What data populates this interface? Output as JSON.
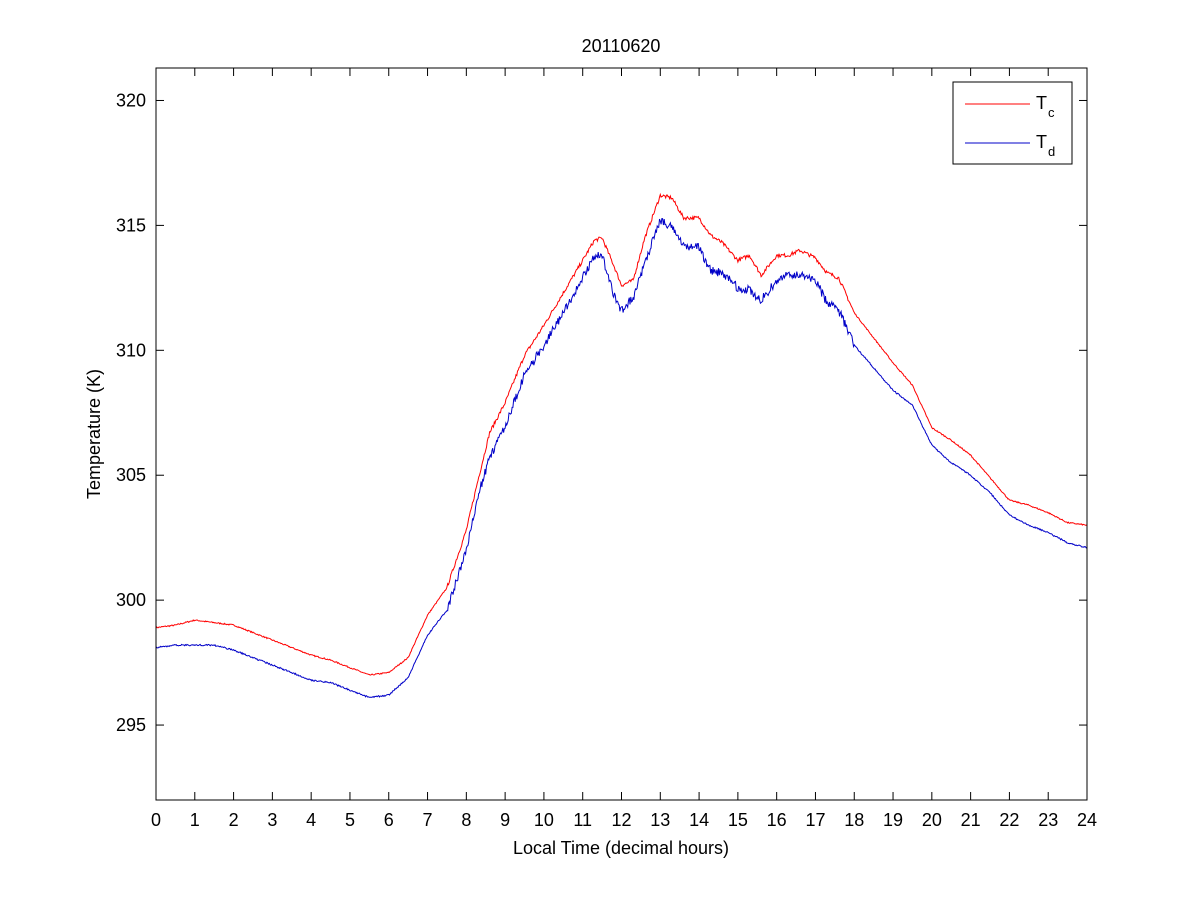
{
  "chart_data": {
    "type": "line",
    "title": "20110620",
    "xlabel": "Local Time (decimal hours)",
    "ylabel": "Temperature (K)",
    "xlim": [
      0,
      24
    ],
    "ylim": [
      292,
      321.3
    ],
    "xticks": [
      0,
      1,
      2,
      3,
      4,
      5,
      6,
      7,
      8,
      9,
      10,
      11,
      12,
      13,
      14,
      15,
      16,
      17,
      18,
      19,
      20,
      21,
      22,
      23,
      24
    ],
    "yticks": [
      295,
      300,
      305,
      310,
      315,
      320
    ],
    "grid": false,
    "legend_position": "top-right",
    "series": [
      {
        "name": "T",
        "subscript": "c",
        "color": "#ff0000",
        "x": [
          0,
          0.5,
          1,
          1.5,
          2,
          2.5,
          3,
          3.5,
          4,
          4.5,
          5,
          5.5,
          6,
          6.5,
          7,
          7.5,
          8,
          8.3,
          8.6,
          9,
          9.5,
          10,
          10.5,
          11,
          11.3,
          11.5,
          11.8,
          12,
          12.3,
          12.6,
          13,
          13.3,
          13.6,
          14,
          14.3,
          14.6,
          15,
          15.3,
          15.6,
          16,
          16.3,
          16.6,
          17,
          17.3,
          17.6,
          18,
          18.5,
          19,
          19.5,
          20,
          20.5,
          21,
          21.5,
          22,
          22.5,
          23,
          23.5,
          24
        ],
        "values": [
          298.9,
          299.0,
          299.2,
          299.1,
          299.0,
          298.7,
          298.4,
          298.1,
          297.8,
          297.6,
          297.3,
          297.0,
          297.1,
          297.7,
          299.4,
          300.5,
          302.8,
          304.8,
          306.7,
          307.9,
          309.8,
          311.0,
          312.3,
          313.6,
          314.4,
          314.5,
          313.4,
          312.6,
          312.8,
          314.5,
          316.2,
          316.1,
          315.3,
          315.3,
          314.6,
          314.3,
          313.6,
          313.8,
          313.0,
          313.8,
          313.8,
          314.0,
          313.7,
          313.1,
          312.9,
          311.5,
          310.5,
          309.5,
          308.6,
          306.9,
          306.4,
          305.8,
          304.9,
          304.0,
          303.8,
          303.5,
          303.1,
          303.0
        ]
      },
      {
        "name": "T",
        "subscript": "d",
        "color": "#0000c8",
        "x": [
          0,
          0.5,
          1,
          1.5,
          2,
          2.5,
          3,
          3.5,
          4,
          4.5,
          5,
          5.5,
          6,
          6.5,
          7,
          7.5,
          8,
          8.3,
          8.6,
          9,
          9.5,
          10,
          10.5,
          11,
          11.3,
          11.5,
          11.8,
          12,
          12.3,
          12.6,
          13,
          13.3,
          13.6,
          14,
          14.3,
          14.6,
          15,
          15.3,
          15.6,
          16,
          16.3,
          16.6,
          17,
          17.3,
          17.6,
          18,
          18.5,
          19,
          19.5,
          20,
          20.5,
          21,
          21.5,
          22,
          22.5,
          23,
          23.5,
          24
        ],
        "values": [
          298.1,
          298.2,
          298.2,
          298.2,
          298.0,
          297.7,
          297.4,
          297.1,
          296.8,
          296.7,
          296.4,
          296.1,
          296.2,
          296.9,
          298.6,
          299.6,
          302.0,
          304.2,
          305.7,
          307.0,
          309.0,
          310.2,
          311.5,
          312.9,
          313.8,
          313.8,
          312.2,
          311.6,
          312.1,
          313.5,
          315.2,
          314.9,
          314.2,
          314.1,
          313.2,
          313.1,
          312.5,
          312.4,
          312.0,
          312.8,
          313.0,
          313.0,
          312.8,
          311.9,
          311.6,
          310.2,
          309.3,
          308.4,
          307.8,
          306.2,
          305.5,
          305.0,
          304.3,
          303.4,
          303.0,
          302.7,
          302.3,
          302.1
        ]
      }
    ]
  }
}
